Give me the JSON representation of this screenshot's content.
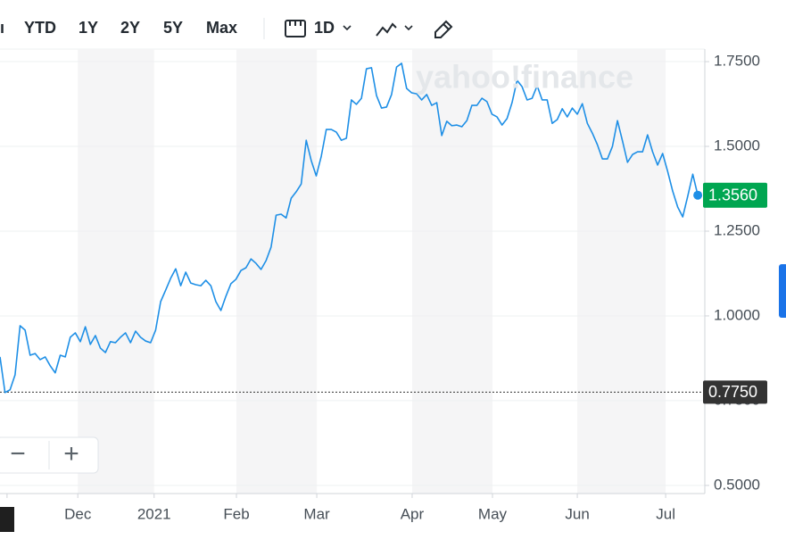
{
  "toolbar": {
    "ranges": [
      "YTD",
      "1Y",
      "2Y",
      "5Y",
      "Max"
    ],
    "interval": "1D"
  },
  "watermark": "yahoo!finance",
  "zoom": [
    "−",
    "+"
  ],
  "chart_data": {
    "type": "line",
    "series": [
      {
        "color": "#1e8fe6",
        "values": [
          0.879,
          0.774,
          0.782,
          0.826,
          0.971,
          0.958,
          0.884,
          0.889,
          0.871,
          0.879,
          0.853,
          0.832,
          0.884,
          0.879,
          0.937,
          0.95,
          0.924,
          0.968,
          0.916,
          0.942,
          0.905,
          0.892,
          0.924,
          0.921,
          0.937,
          0.95,
          0.921,
          0.955,
          0.937,
          0.926,
          0.921,
          0.958,
          1.042,
          1.076,
          1.111,
          1.139,
          1.089,
          1.129,
          1.097,
          1.092,
          1.089,
          1.105,
          1.089,
          1.042,
          1.016,
          1.058,
          1.095,
          1.108,
          1.134,
          1.142,
          1.168,
          1.155,
          1.137,
          1.163,
          1.203,
          1.297,
          1.3,
          1.289,
          1.347,
          1.366,
          1.389,
          1.518,
          1.458,
          1.413,
          1.471,
          1.55,
          1.55,
          1.542,
          1.518,
          1.524,
          1.637,
          1.624,
          1.642,
          1.729,
          1.732,
          1.65,
          1.613,
          1.616,
          1.653,
          1.734,
          1.745,
          1.671,
          1.658,
          1.655,
          1.637,
          1.653,
          1.621,
          1.629,
          1.532,
          1.574,
          1.561,
          1.563,
          1.558,
          1.576,
          1.621,
          1.621,
          1.642,
          1.632,
          1.595,
          1.587,
          1.563,
          1.582,
          1.629,
          1.695,
          1.676,
          1.637,
          1.642,
          1.679,
          1.637,
          1.637,
          1.568,
          1.579,
          1.611,
          1.587,
          1.613,
          1.595,
          1.626,
          1.568,
          1.539,
          1.505,
          1.463,
          1.463,
          1.5,
          1.576,
          1.516,
          1.453,
          1.476,
          1.484,
          1.484,
          1.534,
          1.484,
          1.445,
          1.479,
          1.426,
          1.368,
          1.321,
          1.292,
          1.353,
          1.418,
          1.356
        ]
      }
    ],
    "xlim": [
      0,
      140.4
    ],
    "xticks": [
      {
        "value": 1.4,
        "label": "y"
      },
      {
        "value": 15.5,
        "label": "Dec"
      },
      {
        "value": 30.7,
        "label": "2021"
      },
      {
        "value": 47.1,
        "label": "Feb"
      },
      {
        "value": 63.1,
        "label": "Mar"
      },
      {
        "value": 82.1,
        "label": "Apr"
      },
      {
        "value": 98.1,
        "label": "May"
      },
      {
        "value": 115,
        "label": "Jun"
      },
      {
        "value": 132.6,
        "label": "Jul"
      }
    ],
    "ylim": [
      0.476,
      1.787
    ],
    "yticks": [
      {
        "value": 0.5,
        "label": "0.5000"
      },
      {
        "value": 0.75,
        "label": "0.7500"
      },
      {
        "value": 1.0,
        "label": "1.0000"
      },
      {
        "value": 1.25,
        "label": "1.2500"
      },
      {
        "value": 1.5,
        "label": "1.5000"
      },
      {
        "value": 1.75,
        "label": "1.7500"
      }
    ],
    "grid": true,
    "last_price": {
      "value": 1.356,
      "label": "1.3560",
      "color": "#00a651"
    },
    "reference_line": {
      "value": 0.775,
      "label": "0.7750",
      "color": "#333333"
    }
  }
}
